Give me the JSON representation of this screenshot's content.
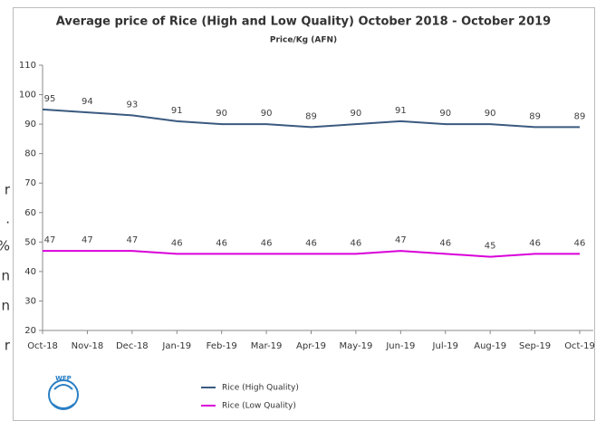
{
  "side_text": [
    "r",
    ".",
    "%",
    "n",
    "n",
    "r"
  ],
  "logo_text": "WFP",
  "chart_data": {
    "type": "line",
    "title": "Average price of Rice (High and Low Quality) October 2018 - October 2019",
    "subtitle": "Price/Kg (AFN)",
    "categories": [
      "Oct-18",
      "Nov-18",
      "Dec-18",
      "Jan-19",
      "Feb-19",
      "Mar-19",
      "Apr-19",
      "May-19",
      "Jun-19",
      "Jul-19",
      "Aug-19",
      "Sep-19",
      "Oct-19"
    ],
    "series": [
      {
        "name": "Rice (High Quality)",
        "color": "#3b5a80",
        "values": [
          95,
          94,
          93,
          91,
          90,
          90,
          89,
          90,
          91,
          90,
          90,
          89,
          89
        ]
      },
      {
        "name": "Rice (Low Quality)",
        "color": "#d900d9",
        "values": [
          47,
          47,
          47,
          46,
          46,
          46,
          46,
          46,
          47,
          46,
          45,
          46,
          46
        ]
      }
    ],
    "ylim": [
      20,
      110
    ],
    "yticks": [
      20,
      30,
      40,
      50,
      60,
      70,
      80,
      90,
      100,
      110
    ],
    "grid": false,
    "legend": "bottom"
  }
}
